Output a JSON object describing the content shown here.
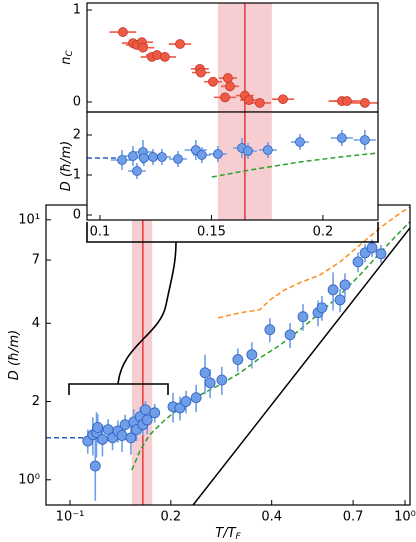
{
  "chart_data": [
    {
      "type": "scatter",
      "xlabel": "T/T",
      "xlabel_sub": "F",
      "ylabel": "D (ħ/m)",
      "xlog": true,
      "ylog": true,
      "xlim": [
        0.0848,
        1.035
      ],
      "ylim": [
        0.8,
        11.4
      ],
      "xticks": [
        {
          "value": 0.1,
          "label": "10⁻¹"
        },
        0.2,
        0.4,
        0.7,
        {
          "value": 1,
          "label": "10⁰"
        }
      ],
      "yticks": [
        {
          "value": 1,
          "label": "10⁰"
        },
        2,
        4,
        7,
        {
          "value": 10,
          "label": "10¹"
        }
      ],
      "band": [
        0.153,
        0.176
      ],
      "band_color": "#f5c6ca",
      "vline": 0.165,
      "vline_color": "#e8383d",
      "series": [
        {
          "style": "solid",
          "color": "#000000",
          "x": [
            0.233,
            1.035
          ],
          "values": [
            0.8,
            9.31
          ]
        },
        {
          "style": "dashed",
          "color": "#ff8c1a",
          "x": [
            0.277,
            0.322,
            0.369,
            0.395,
            0.438,
            0.486,
            0.558,
            0.64,
            0.734,
            0.842,
            0.966,
            1.035
          ],
          "values": [
            4.2,
            4.39,
            4.51,
            4.92,
            5.38,
            5.73,
            6.14,
            6.89,
            8.01,
            9.31,
            10.6,
            11.2
          ]
        },
        {
          "style": "dashed",
          "color": "#2ca02c",
          "x": [
            0.153,
            0.162,
            0.173,
            0.192,
            0.213,
            0.244,
            0.28,
            0.322,
            0.369,
            0.424,
            0.486,
            0.558,
            0.64,
            0.734,
            0.842,
            0.966,
            1.035
          ],
          "values": [
            1.09,
            1.3,
            1.49,
            1.7,
            1.89,
            2.12,
            2.32,
            2.58,
            2.94,
            3.3,
            3.78,
            4.39,
            5.15,
            6.14,
            7.46,
            8.99,
            9.82
          ]
        },
        {
          "style": "dashed",
          "color": "#2f5fc0",
          "x": [
            0.0848,
            0.113
          ],
          "values": [
            1.45,
            1.45
          ]
        },
        {
          "style": "marker",
          "color": "#6f9ee8",
          "edgecolor": "#2f5fc0",
          "x": [
            0.113,
            0.117,
            0.12,
            0.119,
            0.121,
            0.125,
            0.13,
            0.134,
            0.139,
            0.143,
            0.146,
            0.152,
            0.155,
            0.158,
            0.162,
            0.165,
            0.168,
            0.17,
            0.179,
            0.203,
            0.213,
            0.222,
            0.238,
            0.253,
            0.262,
            0.284,
            0.317,
            0.349,
            0.395,
            0.454,
            0.496,
            0.55,
            0.565,
            0.61,
            0.64,
            0.662,
            0.724,
            0.76,
            0.797,
            0.848
          ],
          "values": [
            1.41,
            1.49,
            1.52,
            1.13,
            1.59,
            1.43,
            1.56,
            1.45,
            1.54,
            1.48,
            1.63,
            1.45,
            1.67,
            1.56,
            1.75,
            1.63,
            1.86,
            1.7,
            1.81,
            1.91,
            1.89,
            2.0,
            2.07,
            2.58,
            2.36,
            2.42,
            2.9,
            3.03,
            3.78,
            3.61,
            4.24,
            4.39,
            4.59,
            5.38,
            4.92,
            5.62,
            6.89,
            7.46,
            7.8,
            7.4
          ],
          "yerr": [
            0.15,
            0.25,
            0.3,
            0.3,
            0.2,
            0.2,
            0.15,
            0.15,
            0.15,
            0.2,
            0.15,
            0.2,
            0.2,
            0.15,
            0.15,
            0.15,
            0.15,
            0.2,
            0.15,
            0.25,
            0.2,
            0.2,
            0.25,
            0.45,
            0.3,
            0.3,
            0.3,
            0.35,
            0.4,
            0.4,
            0.5,
            0.5,
            0.5,
            0.9,
            0.5,
            0.6,
            0.6,
            0.6,
            0.6,
            0.6
          ]
        }
      ]
    },
    {
      "type": "scatter",
      "ylabel": "n",
      "ylabel_sub": "C",
      "xlim": [
        0.0942,
        0.2247
      ],
      "ylim": [
        -0.109,
        1.076
      ],
      "yticks": [
        0,
        1
      ],
      "band": [
        0.1529,
        0.1771
      ],
      "band_color": "#f5c6ca",
      "vline": 0.165,
      "vline_color": "#e8383d",
      "series": [
        {
          "style": "marker",
          "color": "#ee5a44",
          "edgecolor": "#c0392b",
          "x": [
            0.1103,
            0.1148,
            0.1166,
            0.1188,
            0.1193,
            0.1233,
            0.1256,
            0.1291,
            0.1359,
            0.1448,
            0.1453,
            0.1507,
            0.1561,
            0.1574,
            0.1583,
            0.165,
            0.1668,
            0.1717,
            0.1821,
            0.2085,
            0.2108,
            0.2188
          ],
          "values": [
            0.76,
            0.64,
            0.62,
            0.65,
            0.59,
            0.49,
            0.51,
            0.49,
            0.63,
            0.36,
            0.32,
            0.22,
            0.05,
            0.26,
            0.17,
            0.07,
            0.02,
            -0.01,
            0.03,
            0.01,
            0.01,
            -0.01
          ],
          "xerr": [
            0.006,
            0.005,
            0.005,
            0.005,
            0.005,
            0.005,
            0.005,
            0.005,
            0.005,
            0.004,
            0.004,
            0.004,
            0.005,
            0.004,
            0.004,
            0.004,
            0.004,
            0.005,
            0.005,
            0.006,
            0.006,
            0.006
          ]
        }
      ]
    },
    {
      "type": "scatter",
      "ylabel": "D (ħ/m)",
      "xlim": [
        0.0942,
        0.2247
      ],
      "ylim": [
        -0.125,
        2.575
      ],
      "xticks": [
        0.1,
        0.15,
        0.2
      ],
      "yticks": [
        0,
        1,
        2
      ],
      "band": [
        0.1529,
        0.1771
      ],
      "band_color": "#f5c6ca",
      "vline": 0.165,
      "vline_color": "#e8383d",
      "series": [
        {
          "style": "dashed",
          "color": "#2ca02c",
          "x": [
            0.1502,
            0.1673,
            0.1897,
            0.2076,
            0.2247
          ],
          "values": [
            0.95,
            1.125,
            1.325,
            1.45,
            1.55
          ]
        },
        {
          "style": "dashed",
          "color": "#2f5fc0",
          "x": [
            0.0942,
            0.1099
          ],
          "values": [
            1.425,
            1.425
          ]
        },
        {
          "style": "marker",
          "color": "#6f9ee8",
          "edgecolor": "#2f5fc0",
          "x": [
            0.1099,
            0.1148,
            0.1166,
            0.1193,
            0.1197,
            0.1238,
            0.1278,
            0.135,
            0.143,
            0.1457,
            0.1529,
            0.1637,
            0.1664,
            0.1753,
            0.1897,
            0.2085,
            0.2188
          ],
          "values": [
            1.375,
            1.475,
            1.1,
            1.575,
            1.425,
            1.45,
            1.45,
            1.4,
            1.625,
            1.5,
            1.525,
            1.675,
            1.6,
            1.625,
            1.825,
            1.925,
            1.875
          ],
          "yerr": [
            0.25,
            0.25,
            0.2,
            0.3,
            0.2,
            0.2,
            0.2,
            0.2,
            0.25,
            0.2,
            0.2,
            0.25,
            0.2,
            0.2,
            0.2,
            0.2,
            0.25
          ],
          "xerr": [
            0.005,
            0.004,
            0.004,
            0.005,
            0.004,
            0.004,
            0.004,
            0.004,
            0.005,
            0.004,
            0.004,
            0.004,
            0.004,
            0.004,
            0.004,
            0.005,
            0.005
          ]
        }
      ]
    }
  ]
}
